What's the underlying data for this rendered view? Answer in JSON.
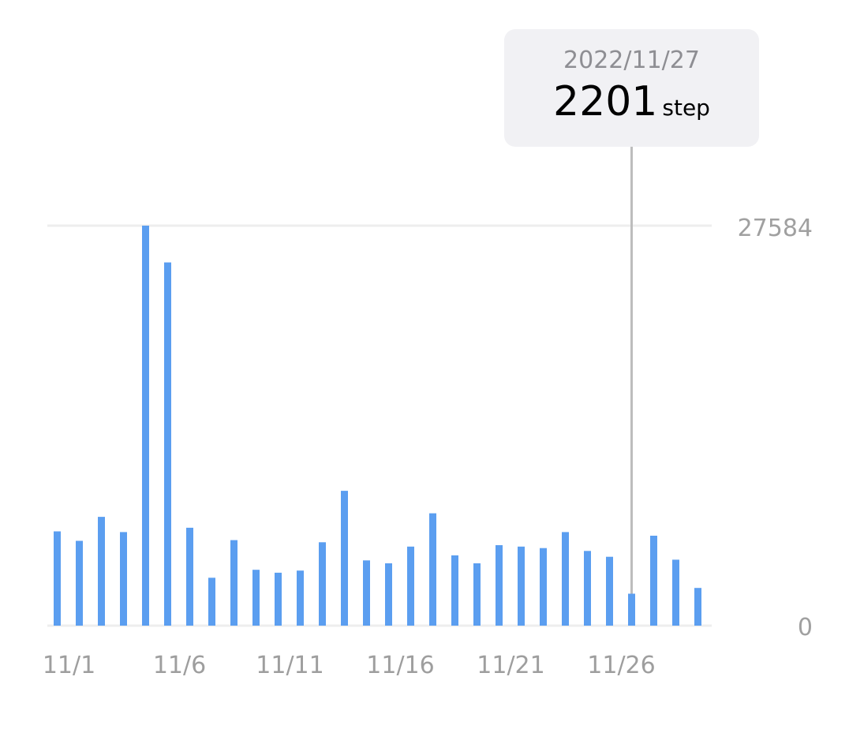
{
  "tooltip": {
    "date": "2022/11/27",
    "value": "2201",
    "unit": "step"
  },
  "chart_data": {
    "type": "bar",
    "categories": [
      "11/1",
      "11/2",
      "11/3",
      "11/4",
      "11/5",
      "11/6",
      "11/7",
      "11/8",
      "11/9",
      "11/10",
      "11/11",
      "11/12",
      "11/13",
      "11/14",
      "11/15",
      "11/16",
      "11/17",
      "11/18",
      "11/19",
      "11/20",
      "11/21",
      "11/22",
      "11/23",
      "11/24",
      "11/25",
      "11/26",
      "11/27",
      "11/28",
      "11/29",
      "11/30"
    ],
    "values": [
      6500,
      5850,
      7500,
      6450,
      27584,
      25050,
      6750,
      3300,
      5900,
      3850,
      3650,
      3800,
      5750,
      9300,
      4500,
      4300,
      5450,
      7750,
      4850,
      4300,
      5550,
      5450,
      5350,
      6450,
      5150,
      4750,
      2201,
      6200,
      4550,
      2600
    ],
    "x_tick_labels": [
      "11/1",
      "11/6",
      "11/11",
      "11/16",
      "11/21",
      "11/26"
    ],
    "y_tick_labels": [
      "0",
      "27584"
    ],
    "ylim": [
      0,
      27584
    ],
    "bar_color": "#5b9ef0",
    "grid": true,
    "selected_category": "11/27",
    "title": "",
    "xlabel": "",
    "ylabel": ""
  }
}
